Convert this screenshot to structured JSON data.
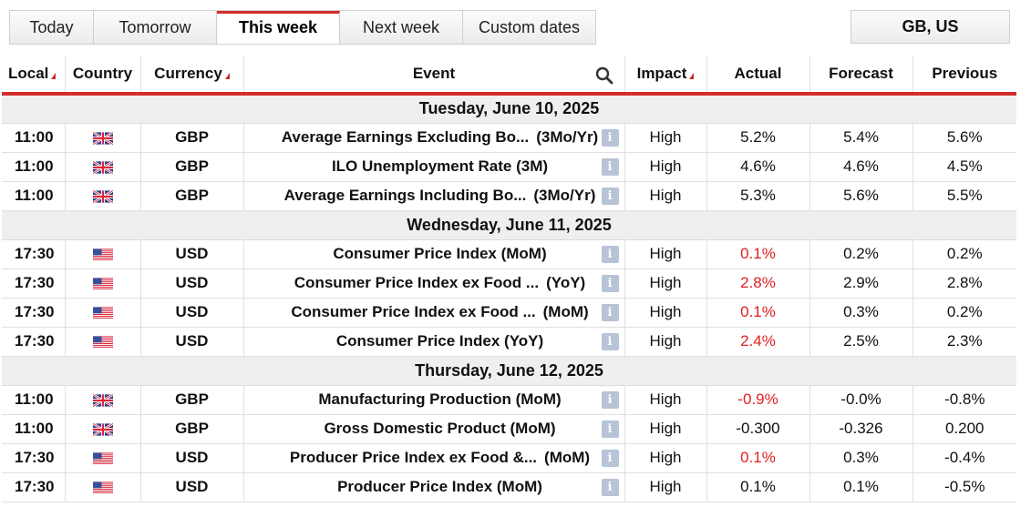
{
  "tabs": [
    {
      "label": "Today"
    },
    {
      "label": "Tomorrow"
    },
    {
      "label": "This week"
    },
    {
      "label": "Next week"
    },
    {
      "label": "Custom dates"
    }
  ],
  "active_tab": "This week",
  "region_label": "GB, US",
  "headers": {
    "local": "Local",
    "country": "Country",
    "currency": "Currency",
    "event": "Event",
    "impact": "Impact",
    "actual": "Actual",
    "forecast": "Forecast",
    "previous": "Previous"
  },
  "colors": {
    "accent": "#d52b2b",
    "negative": "#e02020",
    "info_icon": "#b7c3d6"
  },
  "days": [
    {
      "date": "Tuesday, June 10, 2025",
      "events": [
        {
          "time": "11:00",
          "flag": "gb-flag-icon",
          "currency": "GBP",
          "name": "Average Earnings Excluding Bo...",
          "period": "(3Mo/Yr)",
          "impact": "High",
          "actual": "5.2%",
          "actual_red": false,
          "forecast": "5.4%",
          "previous": "5.6%"
        },
        {
          "time": "11:00",
          "flag": "gb-flag-icon",
          "currency": "GBP",
          "name": "ILO Unemployment Rate (3M)",
          "period": "",
          "impact": "High",
          "actual": "4.6%",
          "actual_red": false,
          "forecast": "4.6%",
          "previous": "4.5%"
        },
        {
          "time": "11:00",
          "flag": "gb-flag-icon",
          "currency": "GBP",
          "name": "Average Earnings Including Bo...",
          "period": "(3Mo/Yr)",
          "impact": "High",
          "actual": "5.3%",
          "actual_red": false,
          "forecast": "5.6%",
          "previous": "5.5%"
        }
      ]
    },
    {
      "date": "Wednesday, June 11, 2025",
      "events": [
        {
          "time": "17:30",
          "flag": "us-flag-icon",
          "currency": "USD",
          "name": "Consumer Price Index (MoM)",
          "period": "",
          "impact": "High",
          "actual": "0.1%",
          "actual_red": true,
          "forecast": "0.2%",
          "previous": "0.2%"
        },
        {
          "time": "17:30",
          "flag": "us-flag-icon",
          "currency": "USD",
          "name": "Consumer Price Index ex Food ...",
          "period": "(YoY)",
          "impact": "High",
          "actual": "2.8%",
          "actual_red": true,
          "forecast": "2.9%",
          "previous": "2.8%"
        },
        {
          "time": "17:30",
          "flag": "us-flag-icon",
          "currency": "USD",
          "name": "Consumer Price Index ex Food ...",
          "period": "(MoM)",
          "impact": "High",
          "actual": "0.1%",
          "actual_red": true,
          "forecast": "0.3%",
          "previous": "0.2%"
        },
        {
          "time": "17:30",
          "flag": "us-flag-icon",
          "currency": "USD",
          "name": "Consumer Price Index (YoY)",
          "period": "",
          "impact": "High",
          "actual": "2.4%",
          "actual_red": true,
          "forecast": "2.5%",
          "previous": "2.3%"
        }
      ]
    },
    {
      "date": "Thursday, June 12, 2025",
      "events": [
        {
          "time": "11:00",
          "flag": "gb-flag-icon",
          "currency": "GBP",
          "name": "Manufacturing Production (MoM)",
          "period": "",
          "impact": "High",
          "actual": "-0.9%",
          "actual_red": true,
          "forecast": "-0.0%",
          "previous": "-0.8%"
        },
        {
          "time": "11:00",
          "flag": "gb-flag-icon",
          "currency": "GBP",
          "name": "Gross Domestic Product (MoM)",
          "period": "",
          "impact": "High",
          "actual": "-0.300",
          "actual_red": false,
          "forecast": "-0.326",
          "previous": "0.200"
        },
        {
          "time": "17:30",
          "flag": "us-flag-icon",
          "currency": "USD",
          "name": "Producer Price Index ex Food &...",
          "period": "(MoM)",
          "impact": "High",
          "actual": "0.1%",
          "actual_red": true,
          "forecast": "0.3%",
          "previous": "-0.4%"
        },
        {
          "time": "17:30",
          "flag": "us-flag-icon",
          "currency": "USD",
          "name": "Producer Price Index (MoM)",
          "period": "",
          "impact": "High",
          "actual": "0.1%",
          "actual_red": false,
          "forecast": "0.1%",
          "previous": "-0.5%"
        }
      ]
    }
  ]
}
